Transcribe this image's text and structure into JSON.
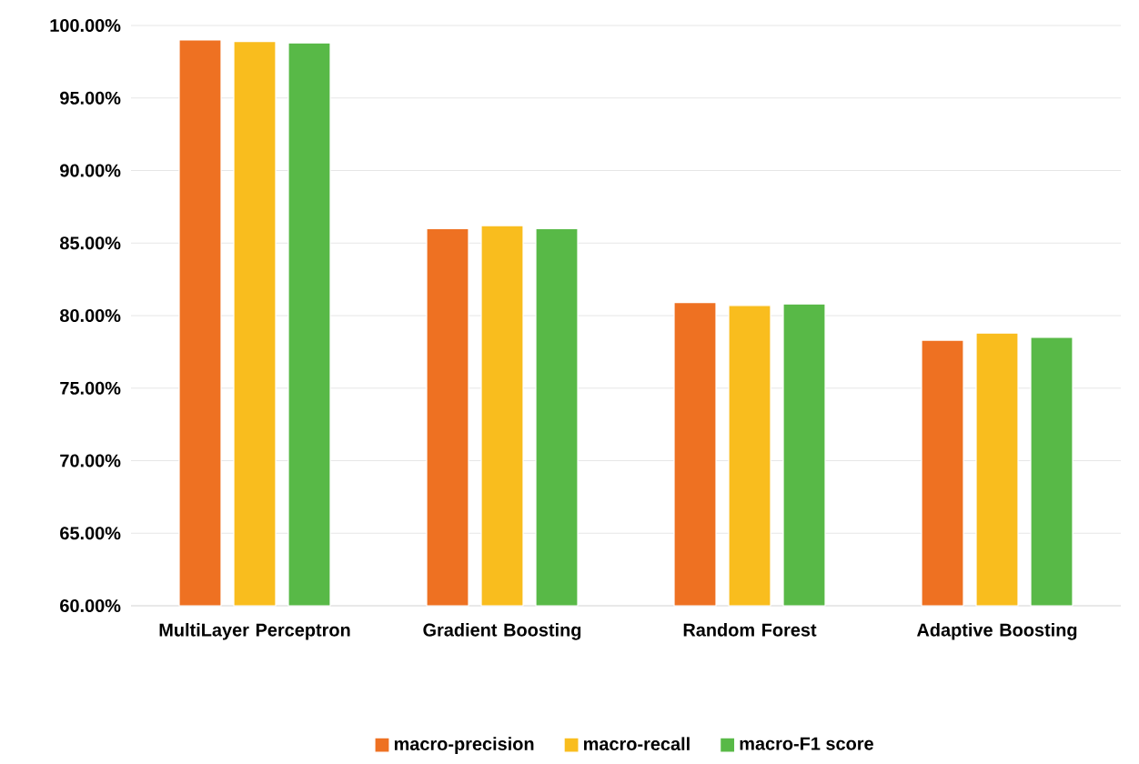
{
  "chart_data": {
    "type": "bar",
    "categories": [
      "MultiLayer Perceptron",
      "Gradient Boosting",
      "Random Forest",
      "Adaptive Boosting"
    ],
    "series": [
      {
        "name": "macro-precision",
        "color": "#ee7122",
        "values": [
          99.0,
          86.0,
          80.9,
          78.3
        ]
      },
      {
        "name": "macro-recall",
        "color": "#f9bd1e",
        "values": [
          98.9,
          86.2,
          80.7,
          78.8
        ]
      },
      {
        "name": "macro-F1 score",
        "color": "#58b947",
        "values": [
          98.8,
          86.0,
          80.8,
          78.5
        ]
      }
    ],
    "ylim": [
      60,
      100
    ],
    "yticks": [
      {
        "value": 60,
        "label": "60.00%"
      },
      {
        "value": 65,
        "label": "65.00%"
      },
      {
        "value": 70,
        "label": "70.00%"
      },
      {
        "value": 75,
        "label": "75.00%"
      },
      {
        "value": 80,
        "label": "80.00%"
      },
      {
        "value": 85,
        "label": "85.00%"
      },
      {
        "value": 90,
        "label": "90.00%"
      },
      {
        "value": 95,
        "label": "95.00%"
      },
      {
        "value": 100,
        "label": "100.00%"
      }
    ],
    "grid": "y",
    "legend": "bottom"
  }
}
